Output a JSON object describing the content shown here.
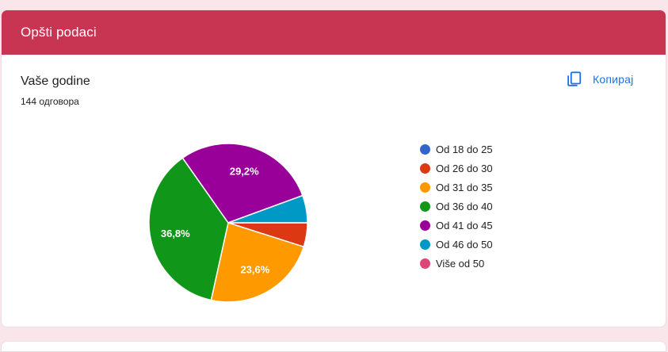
{
  "page": {
    "background_color": "#f8e6ea"
  },
  "section": {
    "title": "Opšti podaci",
    "band_color": "#c83553"
  },
  "question": {
    "title": "Vaše godine",
    "responses": "144 одговора",
    "copy_label": "Копирај",
    "copy_color": "#1a73e8"
  },
  "chart_data": {
    "type": "pie",
    "title": "Vaše godine",
    "responses_total": 144,
    "legend_position": "right",
    "direction": "clockwise",
    "start_angle": "3-oclock",
    "categories": [
      "Od 18 do 25",
      "Od 26 do 30",
      "Od 31 do 35",
      "Od 36 do 40",
      "Od 41 do 45",
      "Od 46 do 50",
      "Više od 50"
    ],
    "values_percent": [
      0,
      4.9,
      23.6,
      36.8,
      29.2,
      5.6,
      0
    ],
    "slice_labels": [
      "",
      "",
      "23,6%",
      "36,8%",
      "29,2%",
      "",
      ""
    ],
    "colors": [
      "#3366cc",
      "#dc3912",
      "#ff9900",
      "#109618",
      "#990099",
      "#0099c6",
      "#dd4477"
    ]
  }
}
